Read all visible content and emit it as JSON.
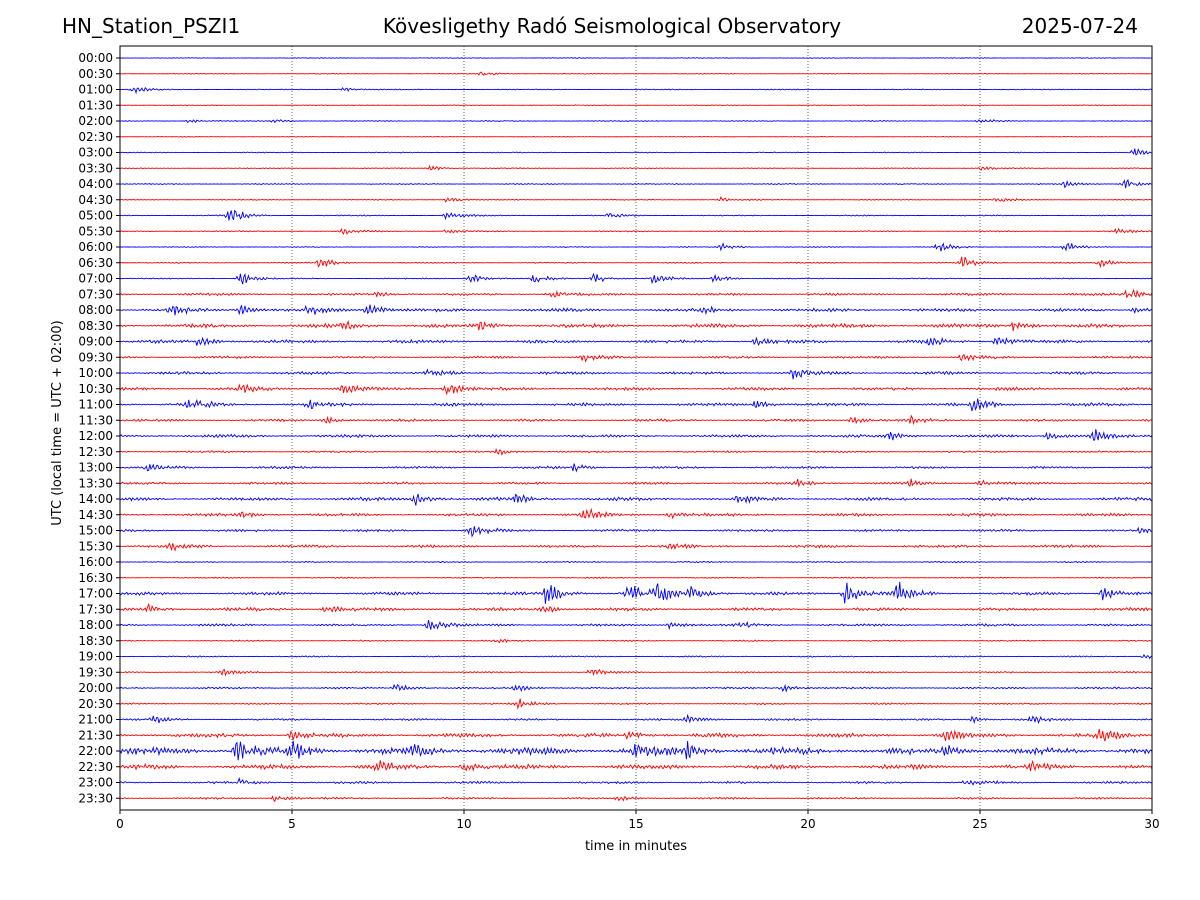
{
  "header": {
    "station": "HN_Station_PSZI1",
    "observatory": "Kövesligethy Radó Seismological Observatory",
    "date": "2025-07-24"
  },
  "chart_data": {
    "type": "line",
    "title": "Kövesligethy Radó Seismological Observatory",
    "xlabel": "time in minutes",
    "ylabel": "UTC (local time = UTC + 02:00)",
    "xlim": [
      0,
      30
    ],
    "xticks": [
      0,
      5,
      10,
      15,
      20,
      25,
      30
    ],
    "grid_x": true,
    "trace_colors": [
      "#0000ff",
      "#ff0000"
    ],
    "rows": [
      {
        "label": "00:00",
        "activity": 0.05,
        "events": []
      },
      {
        "label": "00:30",
        "activity": 0.05,
        "events": [
          [
            10.5,
            0.4
          ]
        ]
      },
      {
        "label": "01:00",
        "activity": 0.06,
        "events": [
          [
            0.4,
            0.5
          ],
          [
            6.5,
            0.3
          ]
        ]
      },
      {
        "label": "01:30",
        "activity": 0.05,
        "events": []
      },
      {
        "label": "02:00",
        "activity": 0.06,
        "events": [
          [
            2.0,
            0.3
          ],
          [
            4.5,
            0.3
          ],
          [
            25.0,
            0.3
          ]
        ]
      },
      {
        "label": "02:30",
        "activity": 0.04,
        "events": []
      },
      {
        "label": "03:00",
        "activity": 0.06,
        "events": [
          [
            29.5,
            0.6
          ]
        ]
      },
      {
        "label": "03:30",
        "activity": 0.06,
        "events": [
          [
            9.0,
            0.4
          ],
          [
            25.0,
            0.3
          ]
        ]
      },
      {
        "label": "04:00",
        "activity": 0.07,
        "events": [
          [
            27.5,
            0.5
          ],
          [
            29.2,
            0.8
          ]
        ]
      },
      {
        "label": "04:30",
        "activity": 0.06,
        "events": [
          [
            9.5,
            0.4
          ],
          [
            17.5,
            0.4
          ],
          [
            25.5,
            0.4
          ]
        ]
      },
      {
        "label": "05:00",
        "activity": 0.07,
        "events": [
          [
            3.2,
            1.2
          ],
          [
            9.5,
            0.6
          ],
          [
            14.2,
            0.4
          ]
        ]
      },
      {
        "label": "05:30",
        "activity": 0.07,
        "events": [
          [
            6.5,
            0.5
          ],
          [
            9.5,
            0.4
          ],
          [
            29.0,
            0.4
          ]
        ]
      },
      {
        "label": "06:00",
        "activity": 0.06,
        "events": [
          [
            17.5,
            0.5
          ],
          [
            23.8,
            0.8
          ],
          [
            27.5,
            0.7
          ]
        ]
      },
      {
        "label": "06:30",
        "activity": 0.07,
        "events": [
          [
            5.8,
            0.8
          ],
          [
            24.5,
            1.2
          ],
          [
            28.5,
            0.6
          ]
        ]
      },
      {
        "label": "07:00",
        "activity": 0.07,
        "events": [
          [
            3.5,
            1.1
          ],
          [
            10.2,
            0.7
          ],
          [
            12.0,
            0.7
          ],
          [
            13.8,
            0.7
          ],
          [
            15.5,
            0.7
          ],
          [
            17.3,
            0.6
          ]
        ]
      },
      {
        "label": "07:30",
        "activity": 0.15,
        "events": [
          [
            7.5,
            0.5
          ],
          [
            12.5,
            0.5
          ],
          [
            29.3,
            1.0
          ]
        ]
      },
      {
        "label": "08:00",
        "activity": 0.2,
        "events": [
          [
            1.5,
            0.8
          ],
          [
            3.5,
            0.8
          ],
          [
            5.5,
            0.8
          ],
          [
            7.2,
            1.1
          ],
          [
            17.0,
            0.5
          ],
          [
            29.5,
            0.5
          ]
        ]
      },
      {
        "label": "08:30",
        "activity": 0.25,
        "events": [
          [
            6.5,
            0.5
          ],
          [
            10.5,
            0.6
          ],
          [
            26.0,
            0.8
          ]
        ]
      },
      {
        "label": "09:00",
        "activity": 0.2,
        "events": [
          [
            2.3,
            0.8
          ],
          [
            18.5,
            0.6
          ],
          [
            23.5,
            0.7
          ],
          [
            25.5,
            0.8
          ]
        ]
      },
      {
        "label": "09:30",
        "activity": 0.15,
        "events": [
          [
            13.5,
            0.5
          ],
          [
            24.5,
            0.7
          ]
        ]
      },
      {
        "label": "10:00",
        "activity": 0.18,
        "events": [
          [
            9.0,
            0.5
          ],
          [
            19.6,
            0.8
          ]
        ]
      },
      {
        "label": "10:30",
        "activity": 0.2,
        "events": [
          [
            3.5,
            0.5
          ],
          [
            6.5,
            0.7
          ],
          [
            9.5,
            1.0
          ]
        ]
      },
      {
        "label": "11:00",
        "activity": 0.2,
        "events": [
          [
            2.0,
            1.1
          ],
          [
            5.5,
            0.7
          ],
          [
            18.5,
            0.6
          ],
          [
            24.8,
            1.0
          ]
        ]
      },
      {
        "label": "11:30",
        "activity": 0.15,
        "events": [
          [
            6.0,
            0.5
          ],
          [
            21.3,
            0.6
          ],
          [
            23.0,
            0.5
          ]
        ]
      },
      {
        "label": "12:00",
        "activity": 0.18,
        "events": [
          [
            22.3,
            0.8
          ],
          [
            27.0,
            0.7
          ],
          [
            28.3,
            1.0
          ]
        ]
      },
      {
        "label": "12:30",
        "activity": 0.12,
        "events": [
          [
            11.0,
            0.4
          ]
        ]
      },
      {
        "label": "13:00",
        "activity": 0.15,
        "events": [
          [
            0.8,
            0.7
          ],
          [
            13.2,
            0.5
          ]
        ]
      },
      {
        "label": "13:30",
        "activity": 0.15,
        "events": [
          [
            19.7,
            0.5
          ],
          [
            23.0,
            0.6
          ],
          [
            25.0,
            0.5
          ]
        ]
      },
      {
        "label": "14:00",
        "activity": 0.22,
        "events": [
          [
            8.6,
            1.0
          ],
          [
            11.5,
            0.8
          ],
          [
            18.0,
            0.5
          ]
        ]
      },
      {
        "label": "14:30",
        "activity": 0.18,
        "events": [
          [
            3.5,
            0.5
          ],
          [
            13.5,
            1.0
          ],
          [
            16.0,
            0.6
          ]
        ]
      },
      {
        "label": "15:00",
        "activity": 0.15,
        "events": [
          [
            10.2,
            1.0
          ],
          [
            29.5,
            0.5
          ]
        ]
      },
      {
        "label": "15:30",
        "activity": 0.18,
        "events": [
          [
            1.5,
            0.5
          ],
          [
            16.0,
            0.5
          ]
        ]
      },
      {
        "label": "16:00",
        "activity": 0.08,
        "events": []
      },
      {
        "label": "16:30",
        "activity": 0.08,
        "events": []
      },
      {
        "label": "17:00",
        "activity": 0.2,
        "events": [
          [
            12.4,
            2.0
          ],
          [
            14.8,
            1.5
          ],
          [
            15.6,
            2.2
          ],
          [
            16.6,
            1.2
          ],
          [
            21.1,
            1.6
          ],
          [
            22.6,
            1.7
          ],
          [
            28.6,
            1.0
          ]
        ]
      },
      {
        "label": "17:30",
        "activity": 0.2,
        "events": [
          [
            0.8,
            0.7
          ],
          [
            6.0,
            0.5
          ],
          [
            12.3,
            0.6
          ]
        ]
      },
      {
        "label": "18:00",
        "activity": 0.15,
        "events": [
          [
            9.0,
            1.0
          ],
          [
            16.0,
            0.5
          ],
          [
            18.0,
            0.4
          ]
        ]
      },
      {
        "label": "18:30",
        "activity": 0.08,
        "events": [
          [
            11.0,
            0.3
          ]
        ]
      },
      {
        "label": "19:00",
        "activity": 0.08,
        "events": [
          [
            29.8,
            0.4
          ]
        ]
      },
      {
        "label": "19:30",
        "activity": 0.1,
        "events": [
          [
            3.0,
            0.4
          ],
          [
            13.7,
            0.5
          ]
        ]
      },
      {
        "label": "20:00",
        "activity": 0.12,
        "events": [
          [
            8.0,
            0.7
          ],
          [
            11.5,
            0.6
          ],
          [
            19.3,
            0.6
          ]
        ]
      },
      {
        "label": "20:30",
        "activity": 0.1,
        "events": [
          [
            11.6,
            0.7
          ]
        ]
      },
      {
        "label": "21:00",
        "activity": 0.12,
        "events": [
          [
            1.0,
            0.6
          ],
          [
            16.5,
            0.7
          ],
          [
            24.8,
            0.5
          ],
          [
            26.5,
            0.6
          ]
        ]
      },
      {
        "label": "21:30",
        "activity": 0.25,
        "events": [
          [
            5.0,
            0.6
          ],
          [
            14.8,
            0.7
          ],
          [
            24.0,
            0.8
          ],
          [
            28.5,
            0.8
          ]
        ]
      },
      {
        "label": "22:00",
        "activity": 0.45,
        "events": [
          [
            3.4,
            1.5
          ],
          [
            5.0,
            1.2
          ],
          [
            8.5,
            0.8
          ],
          [
            15.0,
            1.2
          ],
          [
            16.5,
            1.3
          ],
          [
            24.0,
            0.8
          ]
        ]
      },
      {
        "label": "22:30",
        "activity": 0.3,
        "events": [
          [
            7.5,
            0.7
          ],
          [
            10.0,
            0.9
          ],
          [
            26.5,
            0.6
          ]
        ]
      },
      {
        "label": "23:00",
        "activity": 0.15,
        "events": [
          [
            3.5,
            0.5
          ],
          [
            24.5,
            0.5
          ]
        ]
      },
      {
        "label": "23:30",
        "activity": 0.12,
        "events": [
          [
            4.5,
            0.5
          ],
          [
            14.5,
            0.4
          ]
        ]
      }
    ]
  }
}
